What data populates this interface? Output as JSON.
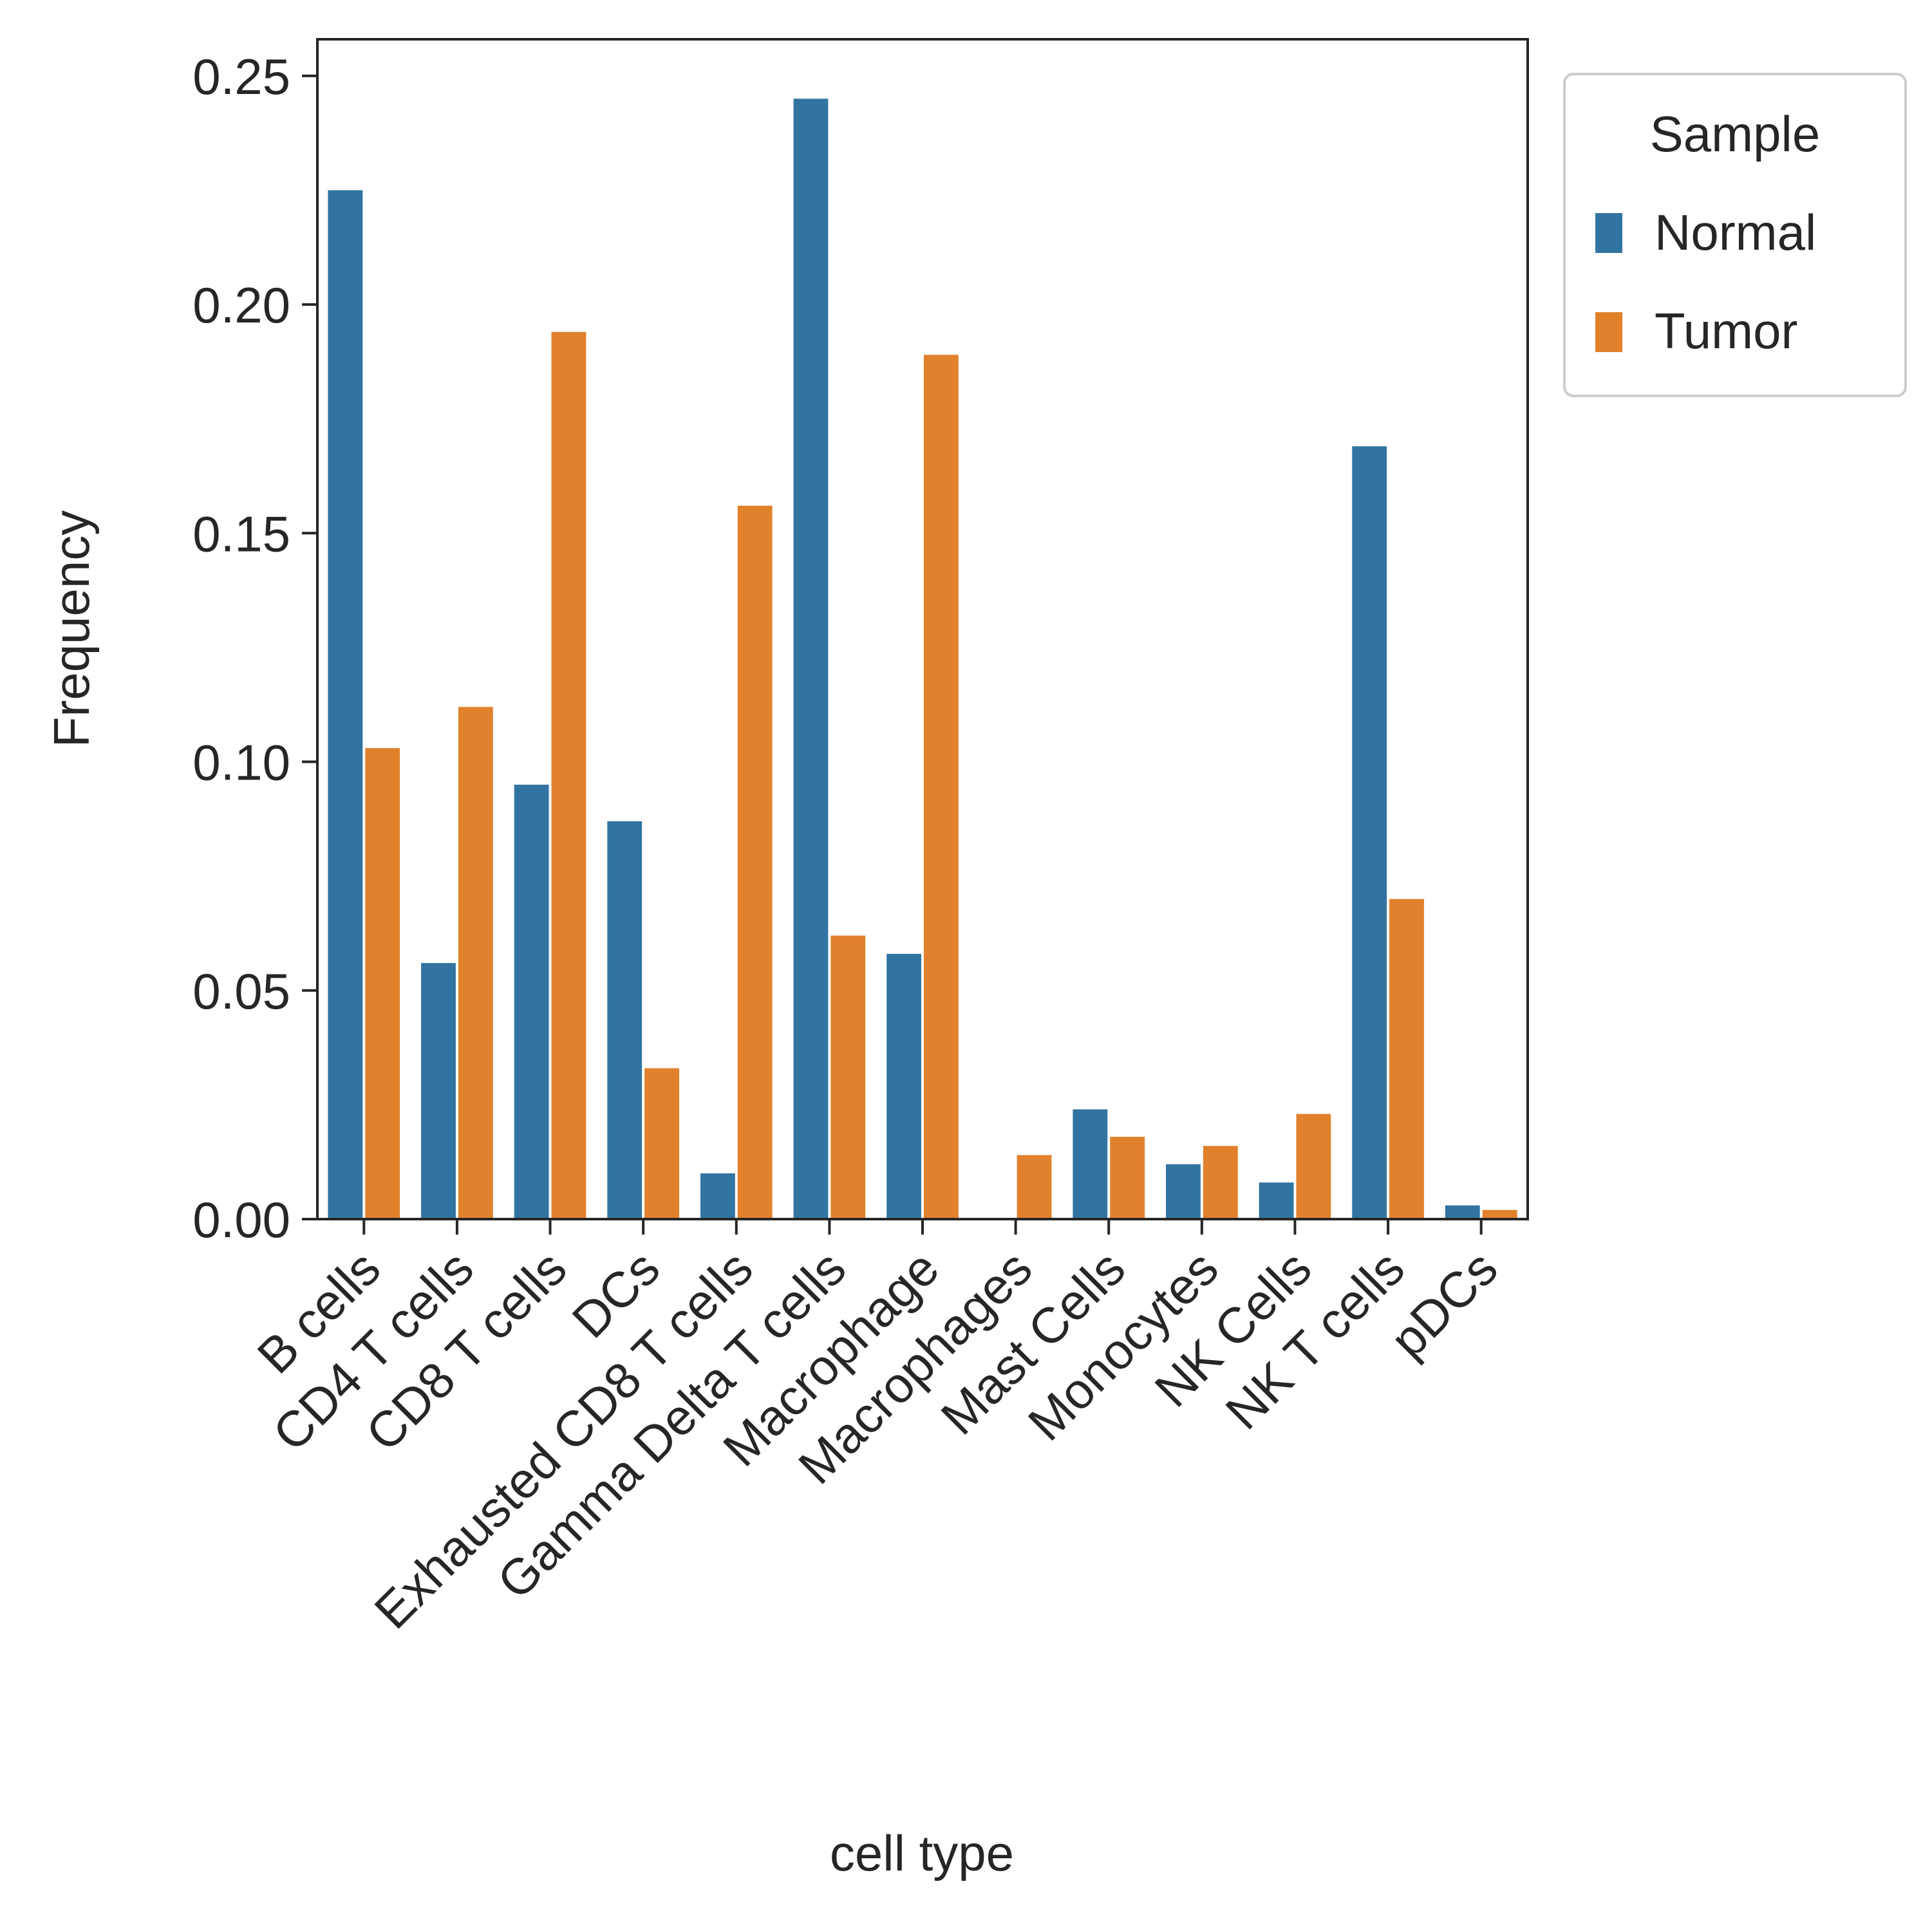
{
  "chart_data": {
    "type": "bar",
    "title": "",
    "xlabel": "cell type",
    "ylabel": "Frequency",
    "ylim": [
      0,
      0.258
    ],
    "yticks": [
      "0.00",
      "0.05",
      "0.10",
      "0.15",
      "0.20",
      "0.25"
    ],
    "ytick_values": [
      0,
      0.05,
      0.1,
      0.15,
      0.2,
      0.25
    ],
    "categories": [
      "B cells",
      "CD4 T cells",
      "CD8 T cells",
      "DCs",
      "Exhausted CD8 T cells",
      "Gamma Delta T cells",
      "Macrophage",
      "Macrophages",
      "Mast Cells",
      "Monocytes",
      "NK Cells",
      "NK T cells",
      "pDCs"
    ],
    "series": [
      {
        "name": "Normal",
        "color": "#3274a1",
        "values": [
          0.225,
          0.056,
          0.095,
          0.087,
          0.01,
          0.245,
          0.058,
          0.0,
          0.024,
          0.012,
          0.008,
          0.169,
          0.003
        ]
      },
      {
        "name": "Tumor",
        "color": "#e1812c",
        "values": [
          0.103,
          0.112,
          0.194,
          0.033,
          0.156,
          0.062,
          0.189,
          0.014,
          0.018,
          0.016,
          0.023,
          0.07,
          0.002
        ]
      }
    ],
    "legend": {
      "title": "Sample",
      "placement": "outside-top-right"
    },
    "grid": false
  }
}
